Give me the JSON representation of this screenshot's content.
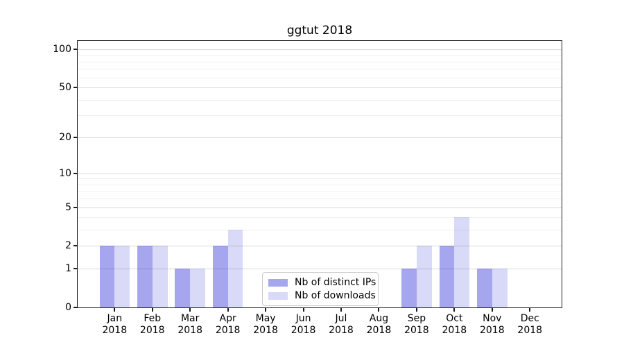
{
  "title": "ggtut 2018",
  "chart_data": {
    "type": "bar",
    "title": "ggtut 2018",
    "categories": [
      "Jan 2018",
      "Feb 2018",
      "Mar 2018",
      "Apr 2018",
      "May 2018",
      "Jun 2018",
      "Jul 2018",
      "Aug 2018",
      "Sep 2018",
      "Oct 2018",
      "Nov 2018",
      "Dec 2018"
    ],
    "months": [
      "Jan",
      "Feb",
      "Mar",
      "Apr",
      "May",
      "Jun",
      "Jul",
      "Aug",
      "Sep",
      "Oct",
      "Nov",
      "Dec"
    ],
    "year": "2018",
    "series": [
      {
        "name": "Nb of distinct IPs",
        "color": "rgba(0,0,210,0.35)",
        "values": [
          2,
          2,
          1,
          2,
          0,
          0,
          0,
          0,
          1,
          2,
          1,
          0
        ]
      },
      {
        "name": "Nb of downloads",
        "color": "rgba(0,0,210,0.15)",
        "values": [
          2,
          2,
          1,
          3,
          0,
          0,
          0,
          0,
          2,
          4,
          1,
          0
        ]
      }
    ],
    "xlabel": "",
    "ylabel": "",
    "yscale": "pseudo-log (log1p)",
    "yticks": [
      0,
      1,
      2,
      5,
      10,
      20,
      50,
      100
    ],
    "minor_yticks": [
      3,
      4,
      6,
      7,
      8,
      9,
      30,
      40,
      60,
      70,
      80,
      90
    ],
    "ylim": [
      0,
      116.3
    ],
    "grid": "on",
    "legend_position": "lower center",
    "colors": {
      "major_grid": "#d8d8d8",
      "minor_grid": "#efefef",
      "spine": "#1a1a1a",
      "text": "#000000",
      "legend_border": "#cccccc"
    }
  }
}
